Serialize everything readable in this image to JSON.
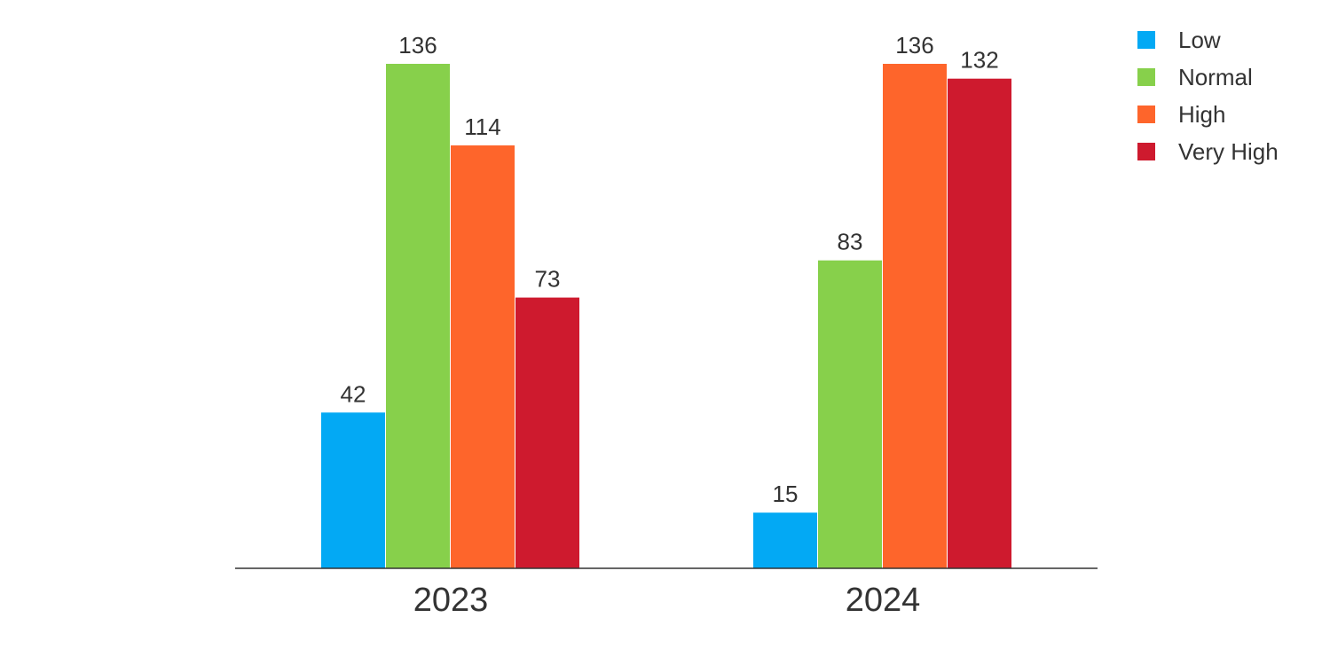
{
  "chart_data": {
    "type": "bar",
    "categories": [
      "2023",
      "2024"
    ],
    "series": [
      {
        "name": "Low",
        "color": "#03a9f4",
        "values": [
          42,
          15
        ]
      },
      {
        "name": "Normal",
        "color": "#87d04b",
        "values": [
          136,
          83
        ]
      },
      {
        "name": "High",
        "color": "#fe652b",
        "values": [
          114,
          136
        ]
      },
      {
        "name": "Very High",
        "color": "#ce1a2e",
        "values": [
          73,
          132
        ]
      }
    ],
    "data_labels": true,
    "ylim": [
      0,
      136
    ],
    "grid": false,
    "legend_position": "top-right"
  }
}
